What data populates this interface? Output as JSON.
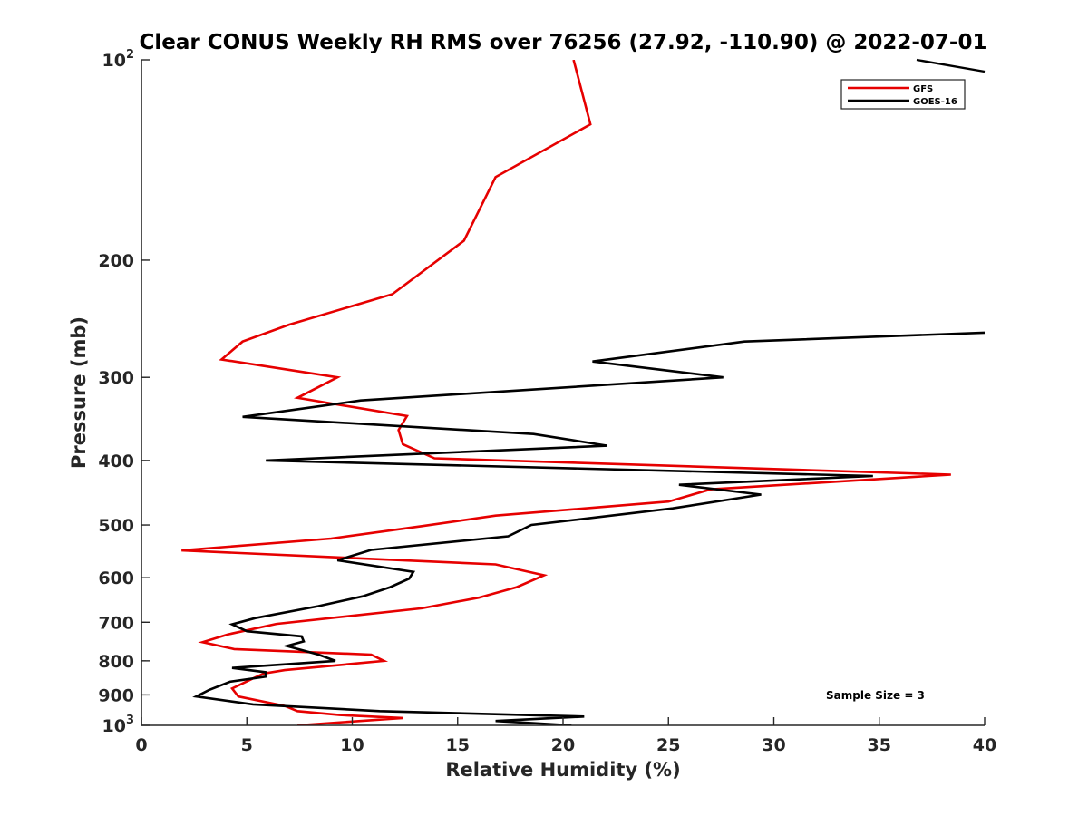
{
  "chart_data": {
    "type": "line",
    "title": "Clear CONUS Weekly RH RMS over 76256 (27.92, -110.90) @ 2022-07-01",
    "xlabel": "Relative Humidity (%)",
    "ylabel": "Pressure (mb)",
    "xlim": [
      0,
      40
    ],
    "ylim": [
      1000,
      100
    ],
    "yscale": "log",
    "xticks": [
      {
        "value": 0,
        "label": "0"
      },
      {
        "value": 5,
        "label": "5"
      },
      {
        "value": 10,
        "label": "10"
      },
      {
        "value": 15,
        "label": "15"
      },
      {
        "value": 20,
        "label": "20"
      },
      {
        "value": 25,
        "label": "25"
      },
      {
        "value": 30,
        "label": "30"
      },
      {
        "value": 35,
        "label": "35"
      },
      {
        "value": 40,
        "label": "40"
      }
    ],
    "yticks": [
      {
        "value": 100,
        "base": "10",
        "exp": "2"
      },
      {
        "value": 200,
        "base": "200",
        "exp": ""
      },
      {
        "value": 300,
        "base": "300",
        "exp": ""
      },
      {
        "value": 400,
        "base": "400",
        "exp": ""
      },
      {
        "value": 500,
        "base": "500",
        "exp": ""
      },
      {
        "value": 600,
        "base": "600",
        "exp": ""
      },
      {
        "value": 700,
        "base": "700",
        "exp": ""
      },
      {
        "value": 800,
        "base": "800",
        "exp": ""
      },
      {
        "value": 900,
        "base": "900",
        "exp": ""
      },
      {
        "value": 1000,
        "base": "10",
        "exp": "3"
      }
    ],
    "legend_position": "top-right",
    "annotation": "Sample Size = 3",
    "series": [
      {
        "name": "GFS",
        "color": "#e60000",
        "points": [
          [
            20.5,
            100
          ],
          [
            21.3,
            125
          ],
          [
            16.8,
            150
          ],
          [
            15.3,
            187
          ],
          [
            11.9,
            225
          ],
          [
            7.0,
            250
          ],
          [
            4.8,
            265
          ],
          [
            3.8,
            282
          ],
          [
            9.3,
            300
          ],
          [
            7.4,
            322
          ],
          [
            12.6,
            343
          ],
          [
            12.2,
            360
          ],
          [
            12.4,
            378
          ],
          [
            13.9,
            397
          ],
          [
            38.4,
            420
          ],
          [
            27.0,
            442
          ],
          [
            25.0,
            461
          ],
          [
            16.8,
            484
          ],
          [
            13.3,
            502
          ],
          [
            9.0,
            524
          ],
          [
            1.9,
            546
          ],
          [
            16.8,
            573
          ],
          [
            19.1,
            595
          ],
          [
            17.8,
            620
          ],
          [
            16.0,
            643
          ],
          [
            13.3,
            667
          ],
          [
            6.4,
            704
          ],
          [
            4.1,
            730
          ],
          [
            2.9,
            750
          ],
          [
            4.4,
            768
          ],
          [
            10.9,
            783
          ],
          [
            11.5,
            800
          ],
          [
            6.8,
            826
          ],
          [
            5.8,
            836
          ],
          [
            5.3,
            850
          ],
          [
            4.3,
            880
          ],
          [
            4.6,
            905
          ],
          [
            6.8,
            935
          ],
          [
            7.4,
            952
          ],
          [
            9.4,
            965
          ],
          [
            12.4,
            975
          ],
          [
            7.4,
            1000
          ]
        ]
      },
      {
        "name": "GOES-16",
        "color": "#000000",
        "points": [
          [
            40.0,
            257
          ],
          [
            28.6,
            265
          ],
          [
            21.4,
            284
          ],
          [
            27.6,
            300
          ],
          [
            10.4,
            325
          ],
          [
            4.8,
            344
          ],
          [
            18.6,
            365
          ],
          [
            22.1,
            380
          ],
          [
            5.9,
            400
          ],
          [
            34.7,
            422
          ],
          [
            25.5,
            435
          ],
          [
            29.4,
            450
          ],
          [
            25.2,
            472
          ],
          [
            18.5,
            500
          ],
          [
            17.4,
            520
          ],
          [
            10.9,
            545
          ],
          [
            9.3,
            565
          ],
          [
            12.9,
            588
          ],
          [
            12.7,
            602
          ],
          [
            11.8,
            620
          ],
          [
            10.5,
            640
          ],
          [
            8.4,
            662
          ],
          [
            5.4,
            690
          ],
          [
            4.3,
            705
          ],
          [
            5.0,
            722
          ],
          [
            7.6,
            735
          ],
          [
            7.7,
            748
          ],
          [
            6.9,
            760
          ],
          [
            8.4,
            783
          ],
          [
            9.2,
            800
          ],
          [
            4.3,
            820
          ],
          [
            5.9,
            832
          ],
          [
            5.9,
            845
          ],
          [
            4.2,
            860
          ],
          [
            3.2,
            885
          ],
          [
            2.6,
            905
          ],
          [
            5.3,
            930
          ],
          [
            11.3,
            952
          ],
          [
            21.0,
            970
          ],
          [
            16.8,
            985
          ],
          [
            20.4,
            1000
          ]
        ]
      }
    ]
  }
}
